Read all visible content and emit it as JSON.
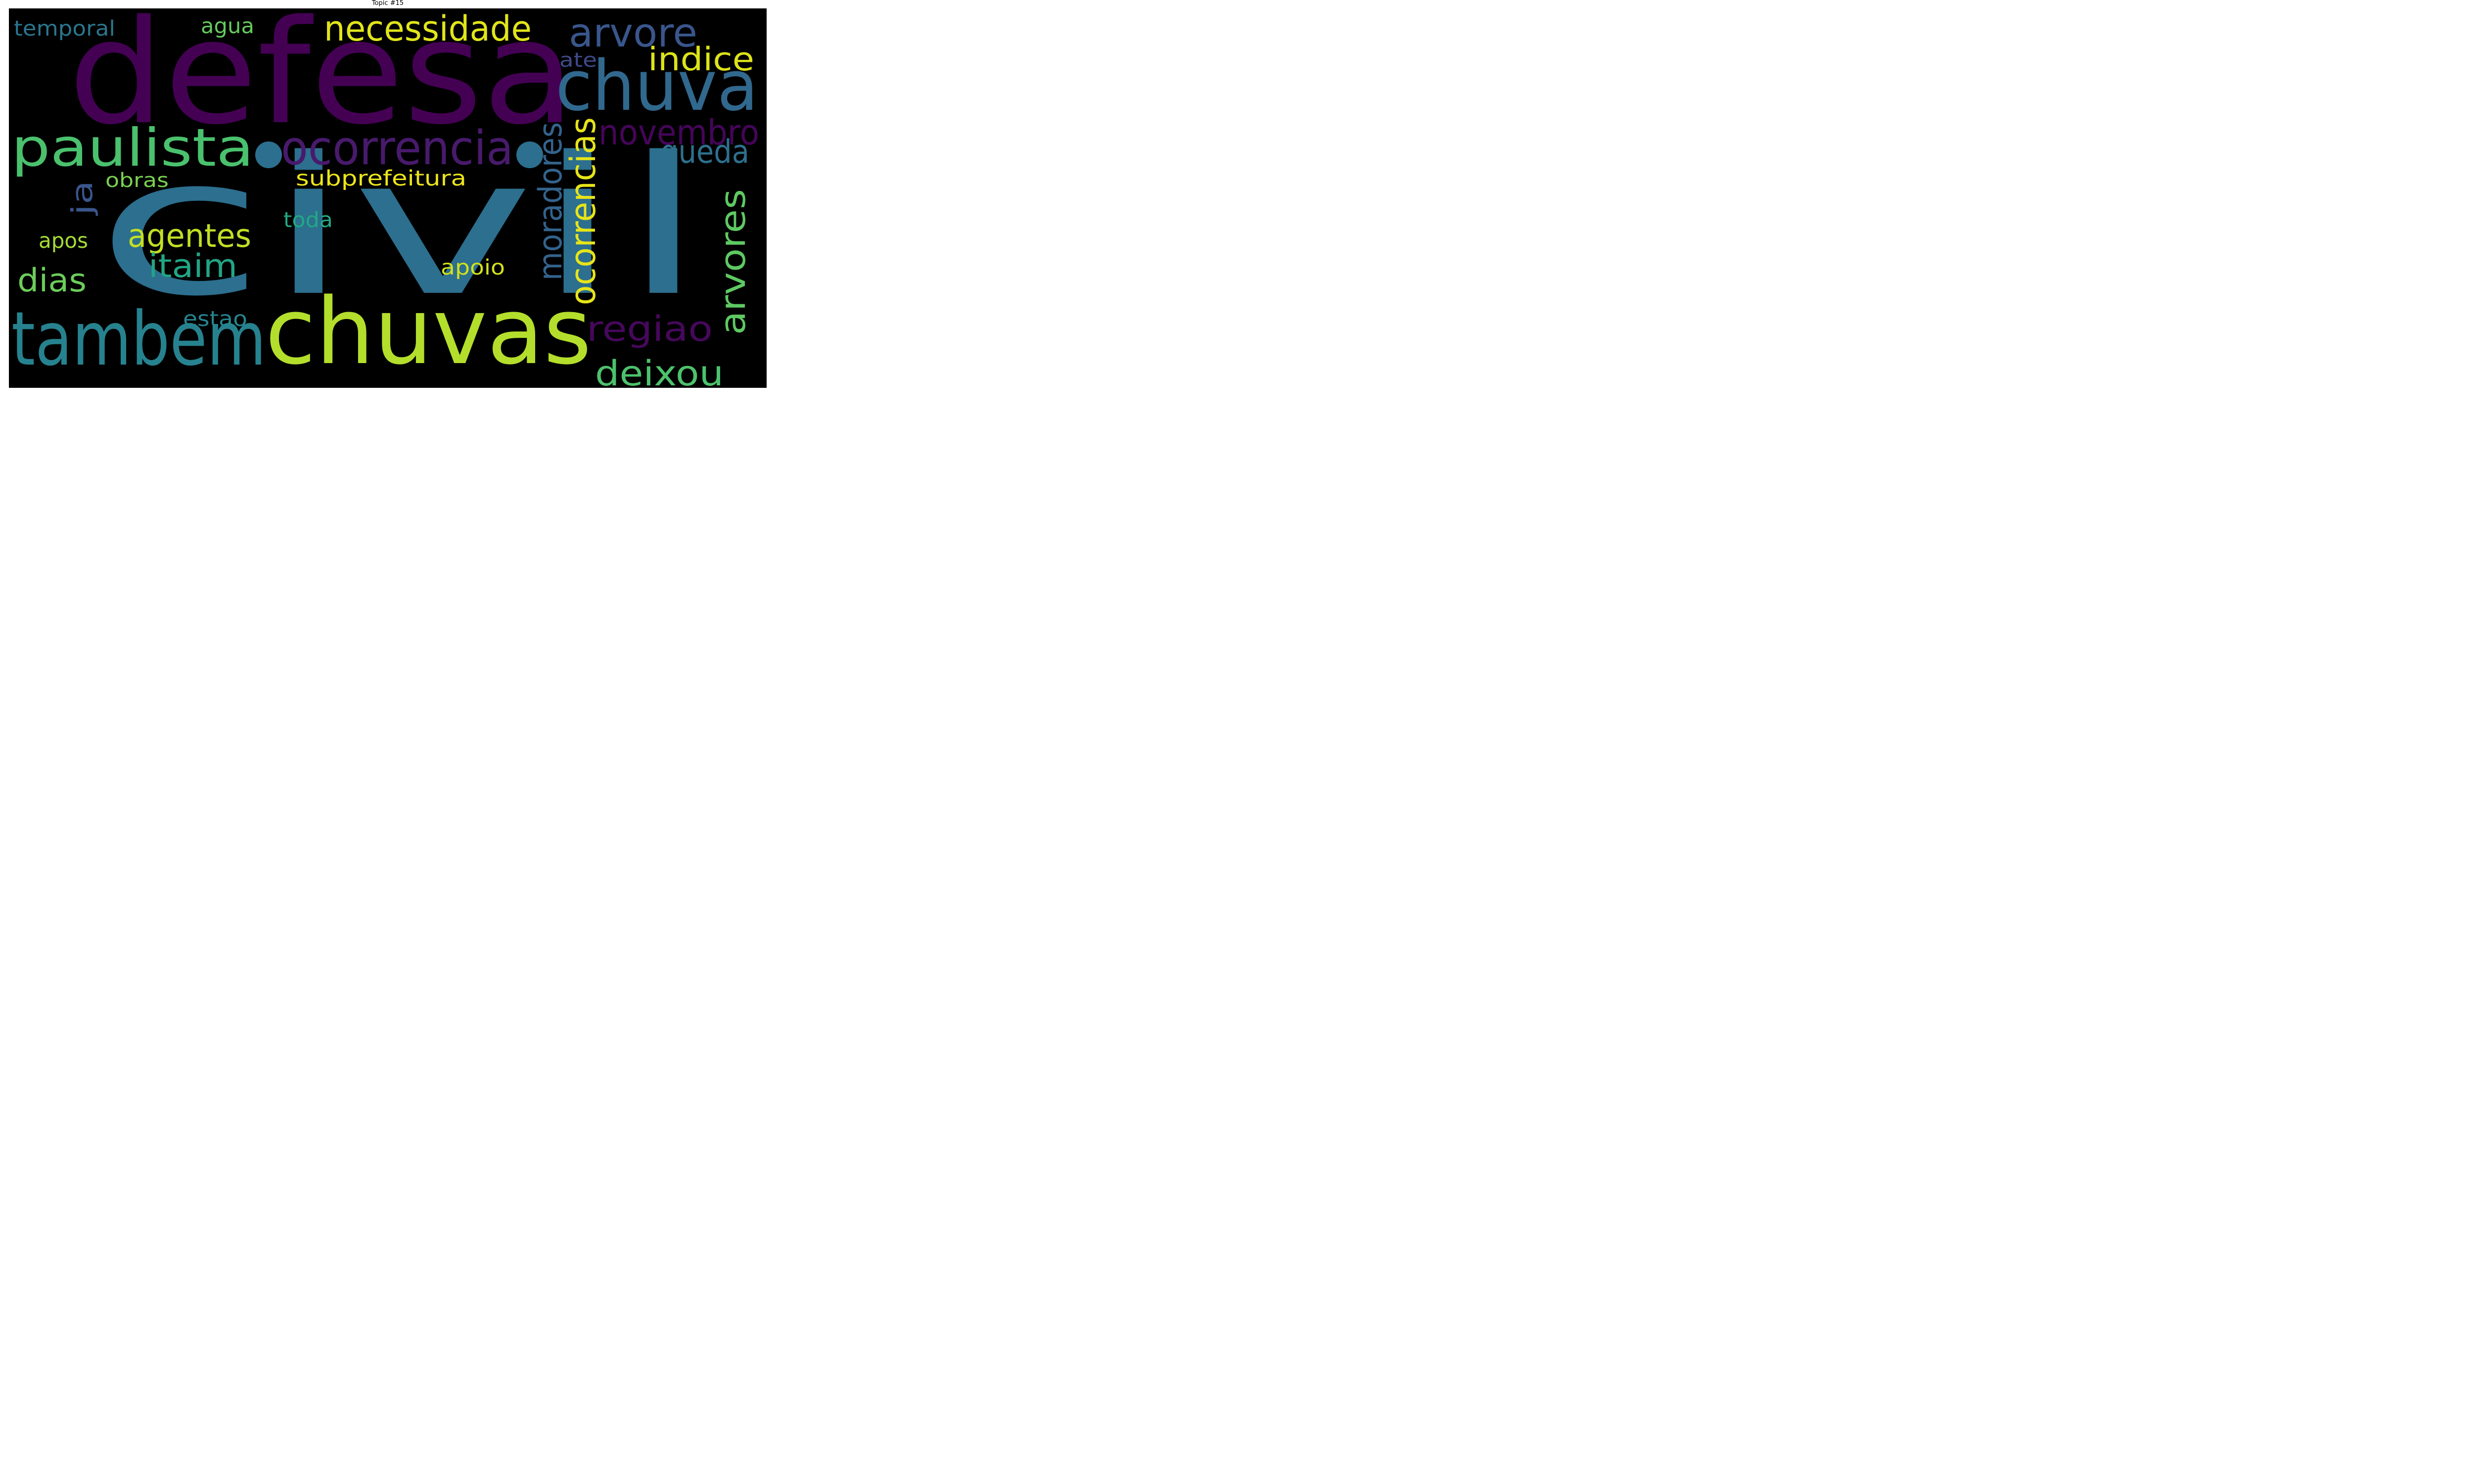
{
  "figure": {
    "title": "Topic #15",
    "background_color": "#000000"
  },
  "words": [
    {
      "text": "civil",
      "color": "#2c6f8e"
    },
    {
      "text": "defesa",
      "color": "#440154"
    },
    {
      "text": "chuvas",
      "color": "#b4de2c"
    },
    {
      "text": "tambem",
      "color": "#26828e"
    },
    {
      "text": "chuva",
      "color": "#31688e"
    },
    {
      "text": "paulista",
      "color": "#4ac16d"
    },
    {
      "text": "ocorrencia",
      "color": "#481a6c"
    },
    {
      "text": "necessidade",
      "color": "#e1e51a"
    },
    {
      "text": "arvore",
      "color": "#39568c"
    },
    {
      "text": "ocorrencias",
      "color": "#e7e419"
    },
    {
      "text": "moradores",
      "color": "#33638d"
    },
    {
      "text": "arvores",
      "color": "#5ec962"
    },
    {
      "text": "novembro",
      "color": "#450559"
    },
    {
      "text": "indice",
      "color": "#dde318"
    },
    {
      "text": "regiao",
      "color": "#46085c"
    },
    {
      "text": "deixou",
      "color": "#4cc26c"
    },
    {
      "text": "queda",
      "color": "#2d708e"
    },
    {
      "text": "agentes",
      "color": "#c0df25"
    },
    {
      "text": "itaim",
      "color": "#21a585"
    },
    {
      "text": "dias",
      "color": "#6ccd5a"
    },
    {
      "text": "ja",
      "color": "#39568c"
    },
    {
      "text": "subprefeitura",
      "color": "#ece51b"
    },
    {
      "text": "obras",
      "color": "#7ad151"
    },
    {
      "text": "temporal",
      "color": "#2a768e"
    },
    {
      "text": "agua",
      "color": "#65cb5e"
    },
    {
      "text": "ate",
      "color": "#3e4a89"
    },
    {
      "text": "toda",
      "color": "#22a884"
    },
    {
      "text": "apos",
      "color": "#a5db36"
    },
    {
      "text": "apoio",
      "color": "#d2e21b"
    },
    {
      "text": "estao",
      "color": "#25858e"
    }
  ]
}
